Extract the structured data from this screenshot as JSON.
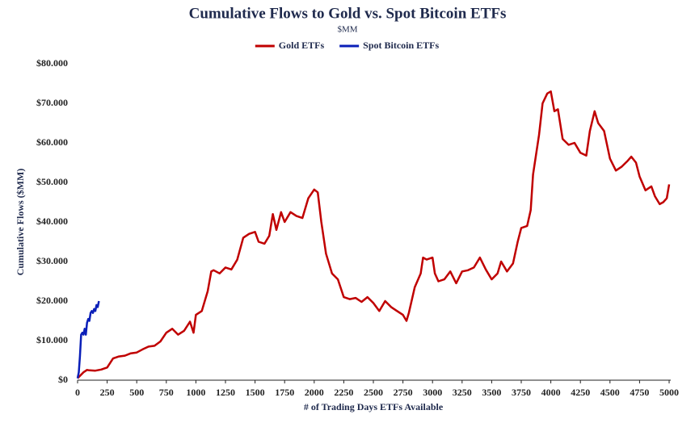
{
  "chart_data": {
    "type": "line",
    "title": "Cumulative Flows to Gold vs. Spot Bitcoin ETFs",
    "subtitle": "$MM",
    "x_label": "# of Trading Days ETFs Available",
    "y_label": "Cumulative Flows ($MM)",
    "xlim": [
      0,
      5000
    ],
    "xticks": [
      0,
      250,
      500,
      750,
      1000,
      1250,
      1500,
      1750,
      2000,
      2250,
      2500,
      2750,
      3000,
      3250,
      3500,
      3750,
      4000,
      4250,
      4500,
      4750,
      5000
    ],
    "ylim": [
      0,
      80000
    ],
    "yticks": [
      {
        "value": 0,
        "label": "$0"
      },
      {
        "value": 10000,
        "label": "$10.000"
      },
      {
        "value": 20000,
        "label": "$20.000"
      },
      {
        "value": 30000,
        "label": "$30.000"
      },
      {
        "value": 40000,
        "label": "$40.000"
      },
      {
        "value": 50000,
        "label": "$50.000"
      },
      {
        "value": 60000,
        "label": "$60.000"
      },
      {
        "value": 70000,
        "label": "$70.000"
      },
      {
        "value": 80000,
        "label": "$80.000"
      }
    ],
    "grid": false,
    "legend": "top",
    "series": [
      {
        "name": "Gold ETFs",
        "color": "#c00000",
        "x": [
          0,
          50,
          80,
          100,
          150,
          200,
          250,
          300,
          350,
          400,
          450,
          500,
          550,
          600,
          650,
          700,
          750,
          800,
          850,
          900,
          950,
          980,
          1000,
          1050,
          1100,
          1130,
          1150,
          1200,
          1250,
          1300,
          1350,
          1400,
          1450,
          1500,
          1530,
          1580,
          1620,
          1650,
          1680,
          1720,
          1750,
          1800,
          1850,
          1900,
          1950,
          2000,
          2030,
          2060,
          2100,
          2150,
          2200,
          2250,
          2300,
          2350,
          2400,
          2450,
          2500,
          2550,
          2600,
          2650,
          2700,
          2750,
          2780,
          2800,
          2850,
          2900,
          2920,
          2950,
          3000,
          3020,
          3050,
          3100,
          3150,
          3200,
          3250,
          3300,
          3350,
          3400,
          3450,
          3500,
          3550,
          3580,
          3630,
          3680,
          3720,
          3750,
          3800,
          3830,
          3850,
          3900,
          3930,
          3970,
          4000,
          4030,
          4060,
          4100,
          4150,
          4200,
          4250,
          4300,
          4330,
          4370,
          4400,
          4450,
          4500,
          4550,
          4600,
          4650,
          4680,
          4720,
          4750,
          4800,
          4850,
          4880,
          4920,
          4950,
          4980,
          5000
        ],
        "values": [
          500,
          2000,
          2600,
          2500,
          2400,
          2700,
          3200,
          5500,
          6000,
          6200,
          6800,
          7000,
          7800,
          8500,
          8700,
          9800,
          12000,
          13000,
          11500,
          12500,
          14800,
          12000,
          16500,
          17500,
          22500,
          27500,
          27800,
          27000,
          28500,
          28000,
          30500,
          36000,
          37000,
          37500,
          35000,
          34500,
          36500,
          42000,
          38000,
          42500,
          40000,
          42500,
          41500,
          41000,
          46000,
          48200,
          47500,
          40000,
          32000,
          27000,
          25500,
          21000,
          20500,
          20800,
          19800,
          21000,
          19500,
          17500,
          20000,
          18500,
          17500,
          16500,
          15000,
          17000,
          23500,
          27000,
          31000,
          30500,
          31000,
          27000,
          25000,
          25500,
          27500,
          24500,
          27500,
          27800,
          28500,
          31000,
          28000,
          25500,
          27000,
          30000,
          27500,
          29500,
          35000,
          38500,
          39000,
          43000,
          52000,
          62000,
          70000,
          72500,
          73000,
          68000,
          68500,
          61000,
          59500,
          60000,
          57500,
          56800,
          63000,
          68000,
          65000,
          63000,
          56000,
          53000,
          54000,
          55500,
          56500,
          55000,
          51500,
          48000,
          49000,
          46500,
          44500,
          45000,
          46000,
          49500
        ]
      },
      {
        "name": "Spot Bitcoin ETFs",
        "color": "#0a1fb8",
        "x": [
          0,
          10,
          20,
          30,
          40,
          50,
          60,
          70,
          80,
          90,
          100,
          110,
          120,
          130,
          140,
          150,
          160,
          170,
          180
        ],
        "values": [
          500,
          2000,
          6000,
          11500,
          12000,
          11500,
          13000,
          11500,
          14500,
          15500,
          15000,
          17000,
          17500,
          17000,
          18000,
          17500,
          19000,
          18500,
          20000
        ]
      }
    ]
  }
}
